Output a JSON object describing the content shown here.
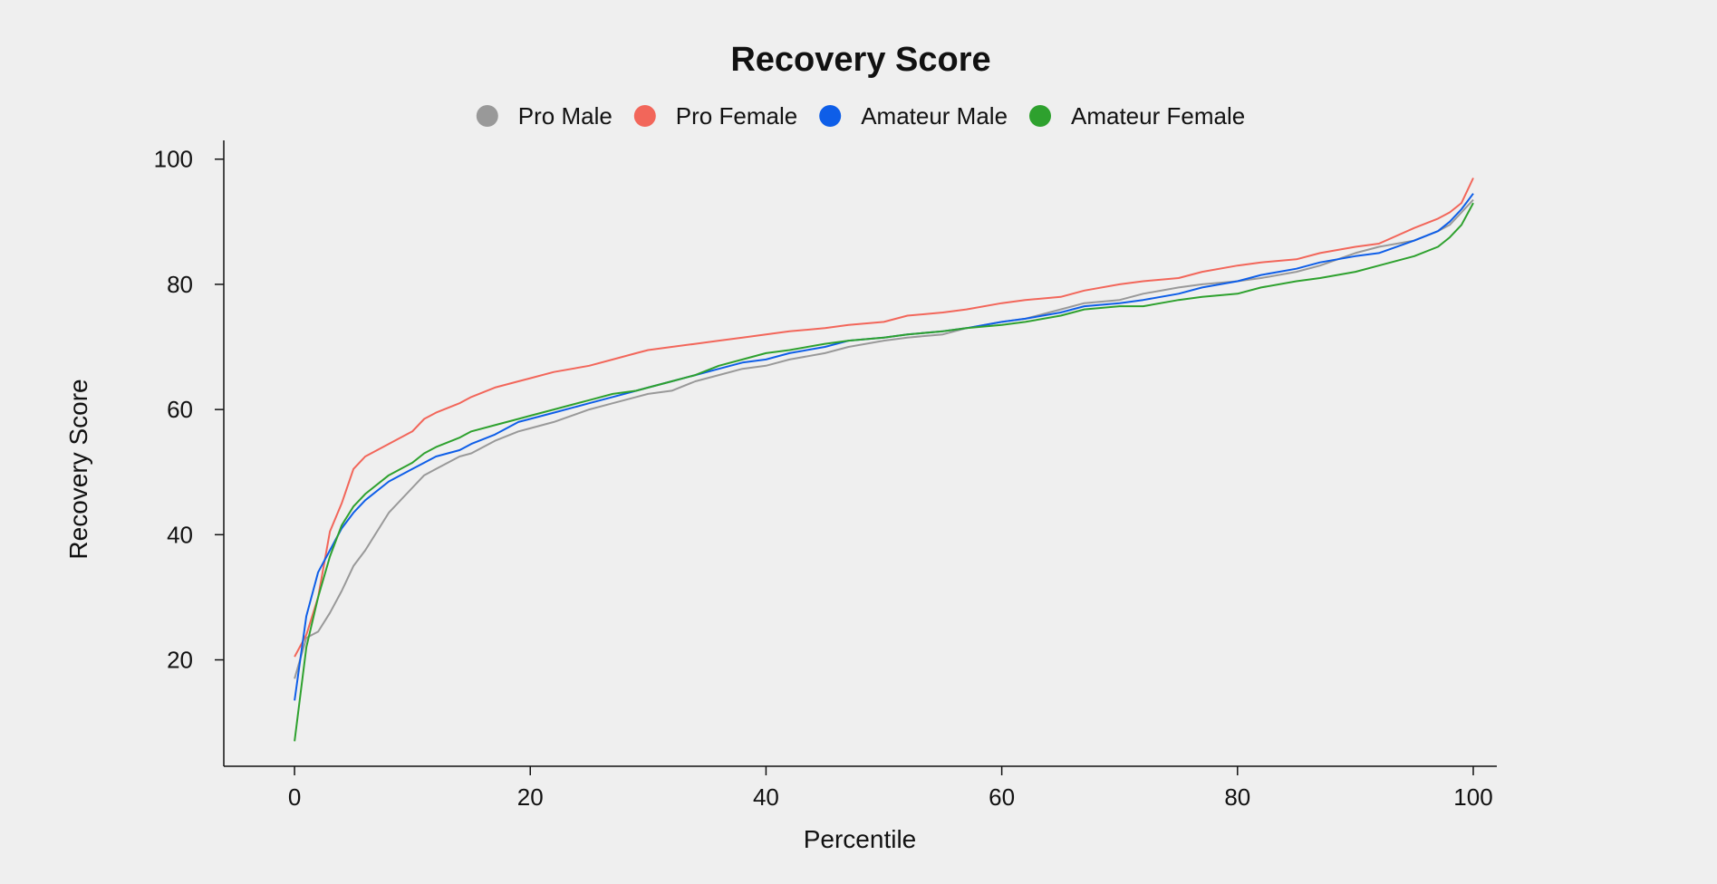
{
  "chart_data": {
    "type": "line",
    "title": "Recovery Score",
    "xlabel": "Percentile",
    "ylabel": "Recovery Score",
    "xlim": [
      -6,
      102
    ],
    "ylim": [
      3,
      103
    ],
    "xticks": [
      0,
      20,
      40,
      60,
      80,
      100
    ],
    "yticks": [
      20,
      40,
      60,
      80,
      100
    ],
    "grid": false,
    "legend": "top-center",
    "x": [
      0,
      1,
      2,
      3,
      4,
      5,
      6,
      8,
      10,
      11,
      12,
      14,
      15,
      17,
      19,
      20,
      22,
      25,
      27,
      29,
      30,
      32,
      34,
      36,
      38,
      40,
      42,
      45,
      47,
      50,
      52,
      55,
      57,
      60,
      62,
      65,
      67,
      70,
      72,
      75,
      77,
      80,
      82,
      85,
      87,
      90,
      92,
      95,
      97,
      98,
      99,
      100
    ],
    "series": [
      {
        "name": "Pro Male",
        "color": "#999999",
        "values": [
          17,
          23.5,
          24.5,
          27.5,
          31,
          35,
          37.5,
          43.5,
          47.5,
          49.5,
          50.5,
          52.5,
          53,
          55,
          56.5,
          57,
          58,
          60,
          61,
          62,
          62.5,
          63,
          64.5,
          65.5,
          66.5,
          67,
          68,
          69,
          70,
          71,
          71.5,
          72,
          73,
          74,
          74.5,
          76,
          77,
          77.5,
          78.5,
          79.5,
          80,
          80.5,
          81,
          82,
          83,
          85,
          86,
          87,
          88.5,
          89.5,
          91.5,
          93.5
        ]
      },
      {
        "name": "Pro Female",
        "color": "#f2665a",
        "values": [
          20.5,
          24,
          30,
          40.5,
          45,
          50.5,
          52.5,
          54.5,
          56.5,
          58.5,
          59.5,
          61,
          62,
          63.5,
          64.5,
          65,
          66,
          67,
          68,
          69,
          69.5,
          70,
          70.5,
          71,
          71.5,
          72,
          72.5,
          73,
          73.5,
          74,
          75,
          75.5,
          76,
          77,
          77.5,
          78,
          79,
          80,
          80.5,
          81,
          82,
          83,
          83.5,
          84,
          85,
          86,
          86.5,
          89,
          90.5,
          91.5,
          93,
          97
        ]
      },
      {
        "name": "Amateur Male",
        "color": "#0e5ee8",
        "values": [
          13.5,
          27,
          34,
          37.5,
          41,
          43.5,
          45.5,
          48.5,
          50.5,
          51.5,
          52.5,
          53.5,
          54.5,
          56,
          58,
          58.5,
          59.5,
          61,
          62,
          63,
          63.5,
          64.5,
          65.5,
          66.5,
          67.5,
          68,
          69,
          70,
          71,
          71.5,
          72,
          72.5,
          73,
          74,
          74.5,
          75.5,
          76.5,
          77,
          77.5,
          78.5,
          79.5,
          80.5,
          81.5,
          82.5,
          83.5,
          84.5,
          85,
          87,
          88.5,
          90,
          92,
          94.5
        ]
      },
      {
        "name": "Amateur Female",
        "color": "#2ea12e",
        "values": [
          7,
          22,
          30,
          36.5,
          41.5,
          44.5,
          46.5,
          49.5,
          51.5,
          53,
          54,
          55.5,
          56.5,
          57.5,
          58.5,
          59,
          60,
          61.5,
          62.5,
          63,
          63.5,
          64.5,
          65.5,
          67,
          68,
          69,
          69.5,
          70.5,
          71,
          71.5,
          72,
          72.5,
          73,
          73.5,
          74,
          75,
          76,
          76.5,
          76.5,
          77.5,
          78,
          78.5,
          79.5,
          80.5,
          81,
          82,
          83,
          84.5,
          86,
          87.5,
          89.5,
          93
        ]
      }
    ]
  }
}
